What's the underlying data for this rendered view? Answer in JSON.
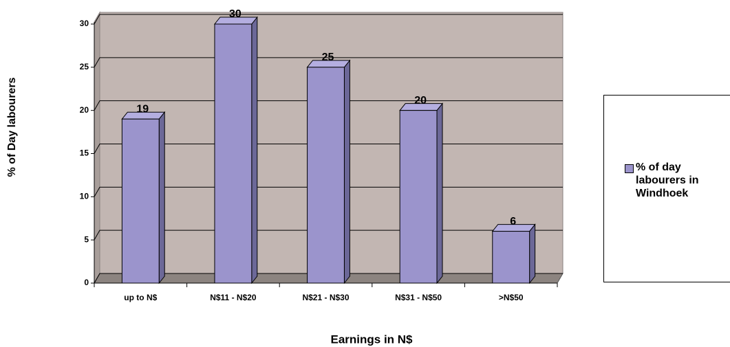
{
  "chart_data": {
    "type": "bar",
    "xlabel": "Earnings in N$",
    "ylabel": "% of Day labourers",
    "categories": [
      "up to N$",
      "N$11 - N$20",
      "N$21 - N$30",
      "N$31 - N$50",
      ">N$50"
    ],
    "series": [
      {
        "name": "% of day labourers in Windhoek",
        "color": "#9b94cc",
        "values": [
          19,
          30,
          25,
          20,
          6
        ]
      }
    ],
    "ylim": [
      0,
      30
    ],
    "yticks": [
      0,
      5,
      10,
      15,
      20,
      25,
      30
    ],
    "grid": true,
    "legend": "right"
  }
}
